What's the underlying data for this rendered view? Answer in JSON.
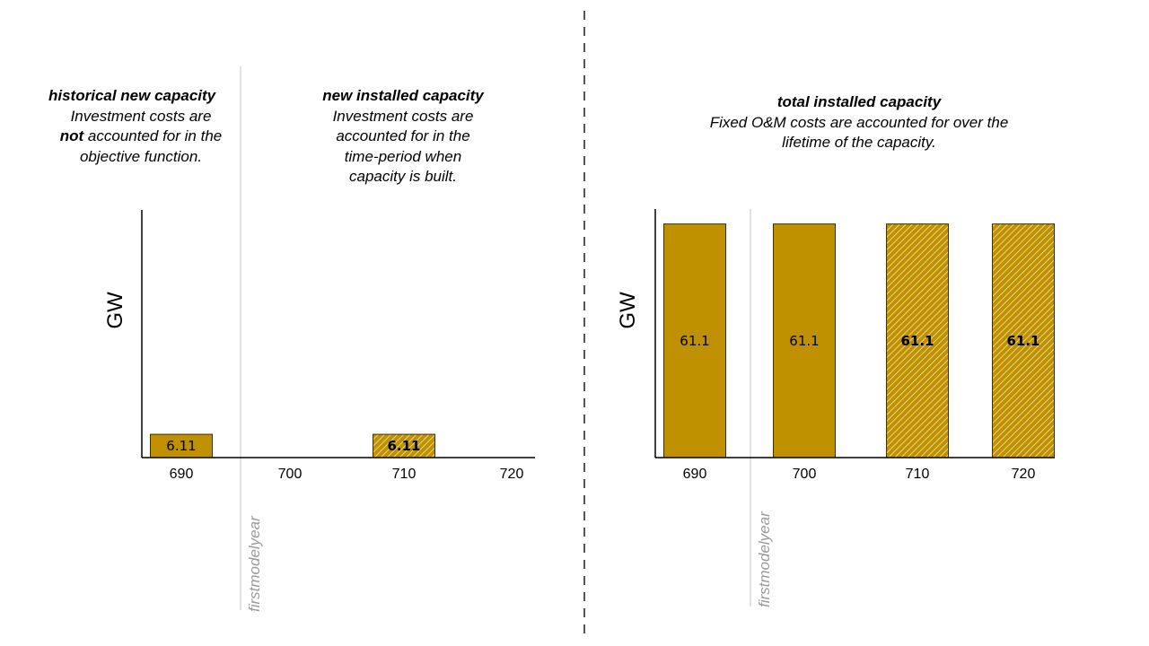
{
  "colors": {
    "bar_fill": "#bf9000",
    "bar_stroke": "#3a3000",
    "hatch_line": "#f6e7a8",
    "axis": "#000000",
    "marker_line": "#c4c4c4",
    "marker_label": "#9a9a9a",
    "divider": "#555555"
  },
  "annotations": {
    "historical": {
      "heading": "historical new capacity",
      "line1": "Investment costs are",
      "line2_bold": "not",
      "line2_rest": " accounted for in the",
      "line3": "objective function."
    },
    "new": {
      "heading": "new installed capacity",
      "line1": "Investment costs are",
      "line2": "accounted for in the",
      "line3": "time-period when",
      "line4": "capacity is built."
    },
    "total": {
      "heading": "total installed capacity",
      "line1": "Fixed O&M costs are accounted for over the",
      "line2": "lifetime of the capacity."
    }
  },
  "chart_data": [
    {
      "type": "bar",
      "panel": "left",
      "ylabel": "GW",
      "ylim": [
        0,
        65
      ],
      "categories": [
        "690",
        "700",
        "710",
        "720"
      ],
      "values": [
        6.11,
        null,
        6.11,
        null
      ],
      "value_labels": [
        "6.11",
        "",
        "6.11",
        ""
      ],
      "hatched": [
        false,
        false,
        true,
        false
      ],
      "label_bold": [
        false,
        false,
        true,
        false
      ],
      "marker": {
        "after_category": "690",
        "label": "firstmodelyear"
      }
    },
    {
      "type": "bar",
      "panel": "right",
      "ylabel": "GW",
      "ylim": [
        0,
        65
      ],
      "categories": [
        "690",
        "700",
        "710",
        "720"
      ],
      "values": [
        61.1,
        61.1,
        61.1,
        61.1
      ],
      "value_labels": [
        "61.1",
        "61.1",
        "61.1",
        "61.1"
      ],
      "hatched": [
        false,
        false,
        true,
        true
      ],
      "label_bold": [
        false,
        false,
        true,
        true
      ],
      "marker": {
        "after_category": "690",
        "label": "firstmodelyear"
      }
    }
  ]
}
